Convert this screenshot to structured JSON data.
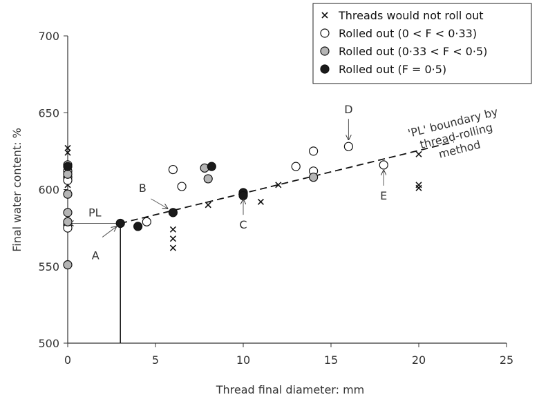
{
  "chart_data": {
    "type": "scatter",
    "xlabel": "Thread final diameter: mm",
    "ylabel": "Final water content: %",
    "xlim": [
      0,
      25
    ],
    "ylim": [
      500,
      700
    ],
    "xticks": [
      0,
      5,
      10,
      15,
      20,
      25
    ],
    "yticks": [
      500,
      550,
      600,
      650,
      700
    ],
    "xtick_labels": [
      "0",
      "5",
      "10",
      "15",
      "20",
      "25"
    ],
    "ytick_labels": [
      "500",
      "550",
      "600",
      "650",
      "700"
    ],
    "grid": false,
    "legend_position": "top-right",
    "series": [
      {
        "name": "Threads would not roll out",
        "marker": "x",
        "points": [
          [
            0,
            627
          ],
          [
            0,
            624
          ],
          [
            0,
            614
          ],
          [
            0,
            607
          ],
          [
            0,
            603
          ],
          [
            0,
            598
          ],
          [
            0,
            578
          ],
          [
            0,
            576
          ],
          [
            6,
            574
          ],
          [
            6,
            568
          ],
          [
            6,
            562
          ],
          [
            8,
            590
          ],
          [
            11,
            592
          ],
          [
            12,
            603
          ],
          [
            20,
            623
          ],
          [
            20,
            603
          ],
          [
            20,
            601
          ]
        ]
      },
      {
        "name": "Rolled out (0 < F < 0·33)",
        "marker": "open-circle",
        "points": [
          [
            0,
            616
          ],
          [
            0,
            612
          ],
          [
            0,
            608
          ],
          [
            0,
            606
          ],
          [
            0,
            577
          ],
          [
            0,
            575
          ],
          [
            4.5,
            579
          ],
          [
            6,
            613
          ],
          [
            6.5,
            602
          ],
          [
            10,
            597
          ],
          [
            13,
            615
          ],
          [
            14,
            625
          ],
          [
            14,
            612
          ],
          [
            16,
            628
          ],
          [
            18,
            616
          ]
        ]
      },
      {
        "name": "Rolled out (0·33 < F < 0·5)",
        "marker": "grey-circle",
        "points": [
          [
            0,
            610
          ],
          [
            0,
            597
          ],
          [
            0,
            585
          ],
          [
            0,
            579
          ],
          [
            0,
            551
          ],
          [
            7.8,
            614
          ],
          [
            8,
            607
          ],
          [
            14,
            608
          ]
        ]
      },
      {
        "name": "Rolled out (F = 0·5)",
        "marker": "filled-circle",
        "points": [
          [
            0,
            615
          ],
          [
            3,
            578
          ],
          [
            4,
            576
          ],
          [
            6,
            585
          ],
          [
            8.2,
            615
          ],
          [
            10,
            598
          ],
          [
            10,
            596
          ]
        ]
      }
    ],
    "boundary_line": {
      "label_lines": [
        "'PL' boundary by",
        "thread-rolling",
        "method"
      ],
      "x": [
        3,
        22
      ],
      "y": [
        578,
        631
      ]
    },
    "pl_marker": {
      "label": "PL",
      "x": 3,
      "y": 578
    },
    "annotations": [
      {
        "label": "A",
        "x": 3,
        "y": 578
      },
      {
        "label": "B",
        "x": 6,
        "y": 585
      },
      {
        "label": "C",
        "x": 10,
        "y": 597
      },
      {
        "label": "D",
        "x": 16,
        "y": 628
      },
      {
        "label": "E",
        "x": 18,
        "y": 616
      }
    ],
    "colors": {
      "grey_fill": "#b5b5b5",
      "filled": "#1a1a1a",
      "line": "#111111"
    }
  }
}
